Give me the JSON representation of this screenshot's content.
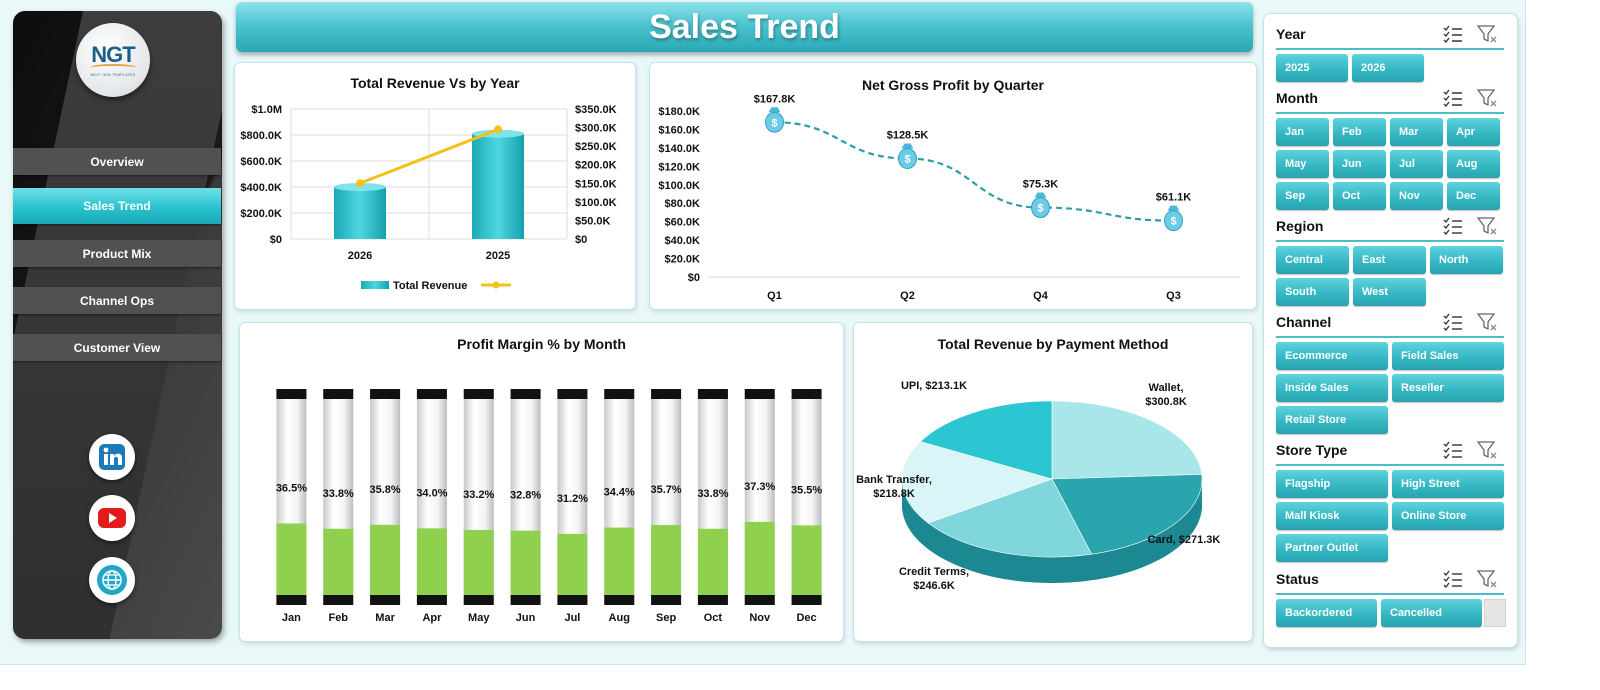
{
  "colors": {
    "accent": "#2ab3bf",
    "bar_fill": "#2bb9c5",
    "line_yellow": "#f2c21b",
    "profit_line": "#2a9fa5",
    "margin_green": "#8fd14f",
    "pie": [
      "#a8e6ea",
      "#2aa5ae",
      "#7fd7dc",
      "#d9f5f7",
      "#2bc6d2"
    ]
  },
  "sidebar": {
    "logo_text": "NGT",
    "logo_subtext": "NEXT GEN TEMPLATES",
    "nav": [
      "Overview",
      "Sales Trend",
      "Product Mix",
      "Channel Ops",
      "Customer View"
    ],
    "active": "Sales Trend",
    "social": [
      "linkedin-icon",
      "youtube-icon",
      "globe-icon"
    ]
  },
  "header": {
    "title": "Sales Trend"
  },
  "panels": {
    "revenue_year_title": "Total Revenue Vs  by Year",
    "net_profit_title": "Net Gross Profit by Quarter",
    "margin_title": "Profit Margin % by Month",
    "payment_title": "Total Revenue by Payment Method"
  },
  "chart_data": [
    {
      "type": "bar",
      "title": "Total Revenue Vs  by Year",
      "categories": [
        "2026",
        "2025"
      ],
      "series": [
        {
          "name": "Total Revenue",
          "kind": "bar",
          "axis": "left",
          "values": [
            400000,
            810000
          ]
        },
        {
          "kind": "line",
          "axis": "right",
          "values": [
            150000,
            295000
          ]
        }
      ],
      "y_left_ticks": [
        "$0",
        "$200.0K",
        "$400.0K",
        "$600.0K",
        "$800.0K",
        "$1.0M"
      ],
      "y_right_ticks": [
        "$0",
        "$50.0K",
        "$100.0K",
        "$150.0K",
        "$200.0K",
        "$250.0K",
        "$300.0K",
        "$350.0K"
      ],
      "ylim_left": [
        0,
        1000000
      ],
      "ylim_right": [
        0,
        350000
      ],
      "legend": "bottom",
      "grid": true
    },
    {
      "type": "line",
      "title": "Net Gross Profit by Quarter",
      "categories": [
        "Q1",
        "Q2",
        "Q4",
        "Q3"
      ],
      "values": [
        167.8,
        128.5,
        75.3,
        61.1
      ],
      "data_labels": [
        "$167.8K",
        "$128.5K",
        "$75.3K",
        "$61.1K"
      ],
      "y_ticks": [
        "$0",
        "$20.0K",
        "$40.0K",
        "$60.0K",
        "$80.0K",
        "$100.0K",
        "$120.0K",
        "$140.0K",
        "$160.0K",
        "$180.0K"
      ],
      "ylim": [
        0,
        180
      ],
      "unit": "K"
    },
    {
      "type": "bar",
      "title": "Profit Margin % by Month",
      "categories": [
        "Jan",
        "Feb",
        "Mar",
        "Apr",
        "May",
        "Jun",
        "Jul",
        "Aug",
        "Sep",
        "Oct",
        "Nov",
        "Dec"
      ],
      "values": [
        36.5,
        33.8,
        35.8,
        34.0,
        33.2,
        32.8,
        31.2,
        34.4,
        35.7,
        33.8,
        37.3,
        35.5
      ],
      "data_labels": [
        "36.5%",
        "33.8%",
        "35.8%",
        "34.0%",
        "33.2%",
        "32.8%",
        "31.2%",
        "34.4%",
        "35.7%",
        "33.8%",
        "37.3%",
        "35.5%"
      ],
      "ylim": [
        0,
        100
      ]
    },
    {
      "type": "pie",
      "title": "Total Revenue by Payment Method",
      "slices": [
        {
          "label": "Wallet",
          "value": 300.8,
          "text": "Wallet,",
          "text2": "$300.8K"
        },
        {
          "label": "Card",
          "value": 271.3,
          "text": "Card, $271.3K",
          "text2": ""
        },
        {
          "label": "Credit Terms",
          "value": 246.6,
          "text": "Credit Terms,",
          "text2": "$246.6K"
        },
        {
          "label": "Bank Transfer",
          "value": 218.8,
          "text": "Bank Transfer,",
          "text2": "$218.8K"
        },
        {
          "label": "UPI",
          "value": 213.1,
          "text": "UPI, $213.1K",
          "text2": ""
        }
      ]
    }
  ],
  "slicers": {
    "year": {
      "title": "Year",
      "items": [
        "2025",
        "2026"
      ]
    },
    "month": {
      "title": "Month",
      "items": [
        "Jan",
        "Feb",
        "Mar",
        "Apr",
        "May",
        "Jun",
        "Jul",
        "Aug",
        "Sep",
        "Oct",
        "Nov",
        "Dec"
      ]
    },
    "region": {
      "title": "Region",
      "items": [
        "Central",
        "East",
        "North",
        "South",
        "West"
      ]
    },
    "channel": {
      "title": "Channel",
      "items": [
        "Ecommerce",
        "Field Sales",
        "Inside Sales",
        "Reseller",
        "Retail Store"
      ]
    },
    "store_type": {
      "title": "Store Type",
      "items": [
        "Flagship",
        "High Street",
        "Mall Kiosk",
        "Online Store",
        "Partner Outlet"
      ]
    },
    "status": {
      "title": "Status",
      "items": [
        "Backordered",
        "Cancelled"
      ]
    }
  }
}
